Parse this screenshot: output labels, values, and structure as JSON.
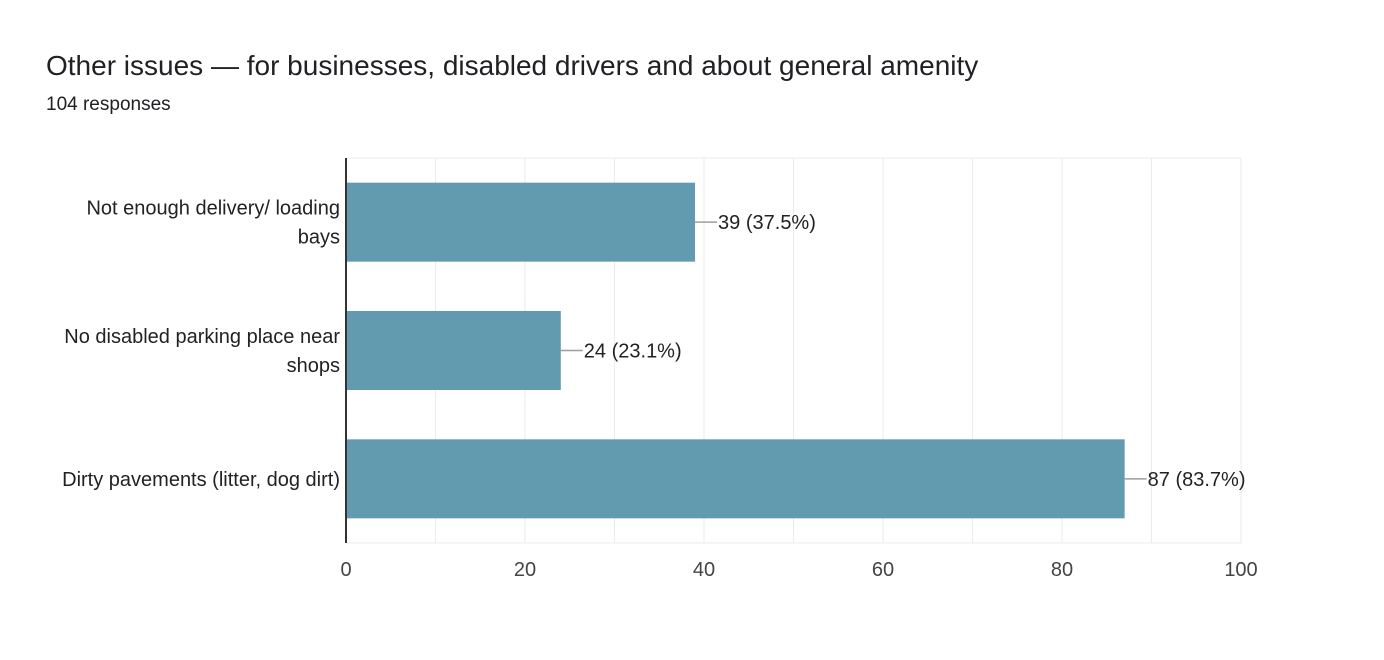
{
  "header": {
    "title": "Other issues — for businesses, disabled drivers and about general amenity",
    "responses": "104 responses"
  },
  "colors": {
    "bar": "#629bb0",
    "grid": "#ebebeb",
    "axis": "#333333",
    "leader": "#9e9e9e"
  },
  "chart_data": {
    "type": "bar",
    "orientation": "horizontal",
    "title": "Other issues — for businesses, disabled drivers and about general amenity",
    "subtitle": "104 responses",
    "categories": [
      [
        "Not enough delivery/ loading",
        "bays"
      ],
      [
        "No disabled parking place near",
        "shops"
      ],
      [
        "Dirty pavements (litter, dog dirt)"
      ]
    ],
    "values": [
      39,
      24,
      87
    ],
    "value_labels": [
      "39 (37.5%)",
      "24 (23.1%)",
      "87 (83.7%)"
    ],
    "xlim": [
      0,
      100
    ],
    "xticks": [
      0,
      20,
      40,
      60,
      80,
      100
    ],
    "xlabel": "",
    "ylabel": "",
    "grid": true
  }
}
